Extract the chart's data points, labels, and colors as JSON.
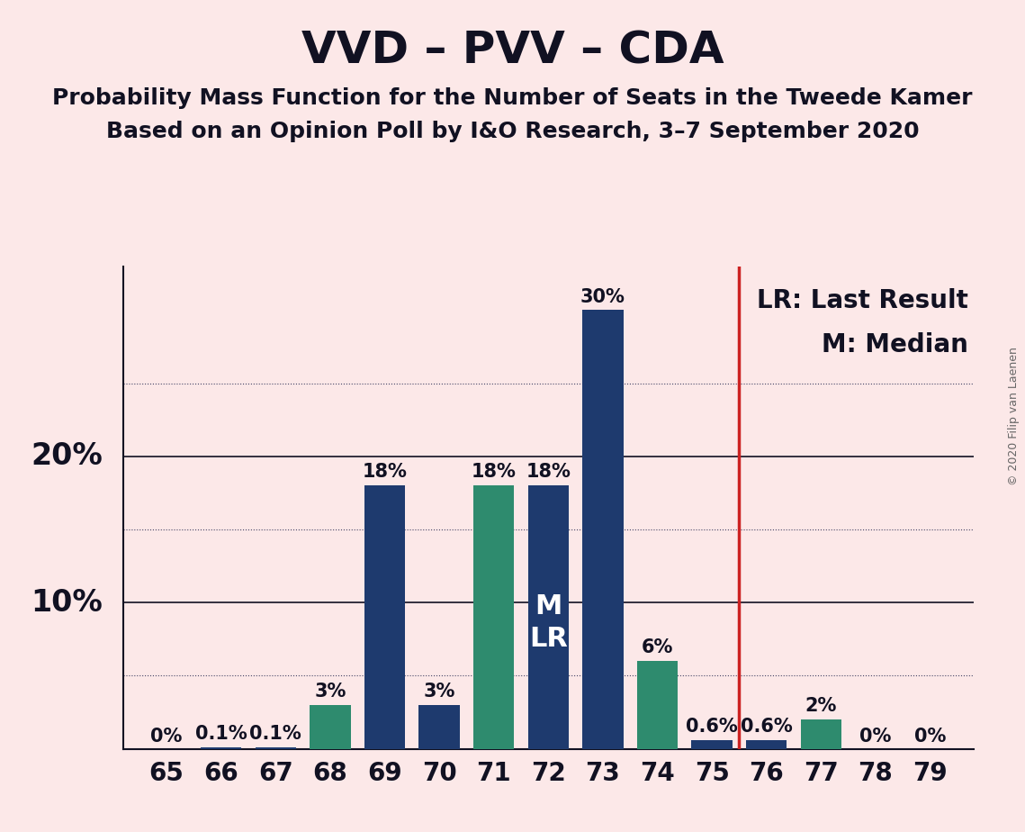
{
  "title": "VVD – PVV – CDA",
  "subtitle1": "Probability Mass Function for the Number of Seats in the Tweede Kamer",
  "subtitle2": "Based on an Opinion Poll by I&O Research, 3–7 September 2020",
  "copyright": "© 2020 Filip van Laenen",
  "seats": [
    65,
    66,
    67,
    68,
    69,
    70,
    71,
    72,
    73,
    74,
    75,
    76,
    77,
    78,
    79
  ],
  "values": [
    0.0,
    0.1,
    0.1,
    3.0,
    18.0,
    3.0,
    18.0,
    18.0,
    30.0,
    6.0,
    0.6,
    0.6,
    2.0,
    0.0,
    0.0
  ],
  "labels": [
    "0%",
    "0.1%",
    "0.1%",
    "3%",
    "18%",
    "3%",
    "18%",
    "18%",
    "30%",
    "6%",
    "0.6%",
    "0.6%",
    "2%",
    "0%",
    "0%"
  ],
  "colors": [
    "#1e3a6e",
    "#1e3a6e",
    "#1e3a6e",
    "#2e8b6e",
    "#1e3a6e",
    "#1e3a6e",
    "#2e8b6e",
    "#1e3a6e",
    "#1e3a6e",
    "#2e8b6e",
    "#1e3a6e",
    "#1e3a6e",
    "#2e8b6e",
    "#1e3a6e",
    "#1e3a6e"
  ],
  "vline_x": 75.5,
  "vline_color": "#cc2222",
  "background_color": "#fce8e8",
  "legend_lr_label": "LR: Last Result",
  "legend_m_label": "M: Median",
  "bar_label_72_text": "M\nLR",
  "bar_label_72_idx": 7,
  "title_fontsize": 36,
  "subtitle_fontsize": 18,
  "tick_fontsize": 20,
  "bar_label_fontsize": 15,
  "ylabel_fontsize": 24,
  "legend_fontsize": 20,
  "solid_hlines": [
    10,
    20
  ],
  "dotted_hlines": [
    5,
    15,
    25
  ],
  "ylim": [
    0,
    33
  ],
  "xlim_left": 64.2,
  "xlim_right": 79.8
}
